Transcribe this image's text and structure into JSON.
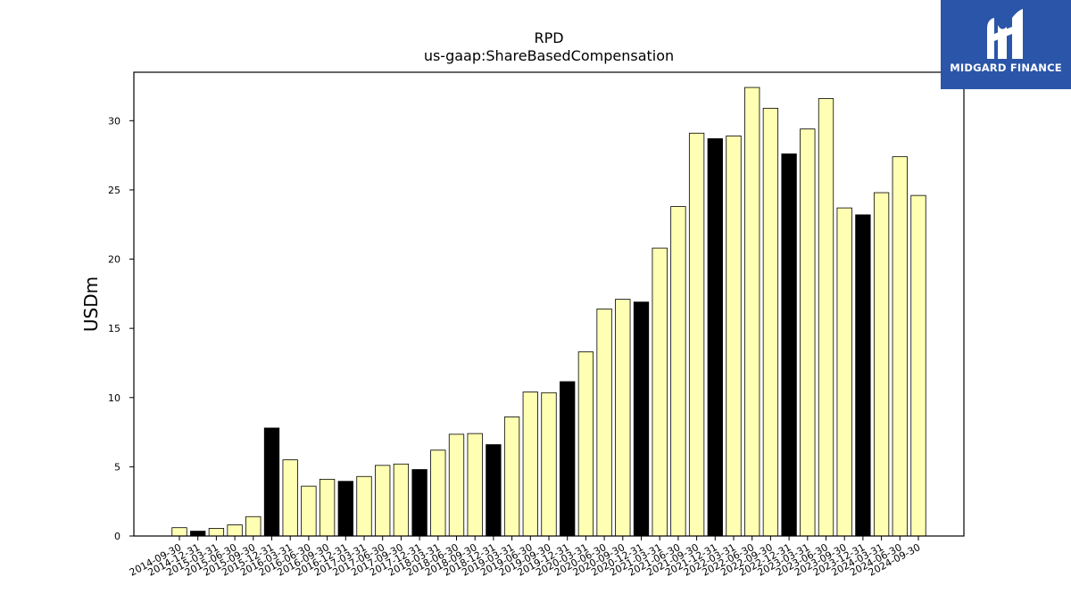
{
  "brand": {
    "name": "MIDGARD FINANCE",
    "logo_icon": "midgard-logo-icon",
    "background_color": "#2b55a8"
  },
  "chart_data": {
    "type": "bar",
    "title": "RPD",
    "subtitle": "us-gaap:ShareBasedCompensation",
    "xlabel": "",
    "ylabel": "USDm",
    "ylim": [
      0,
      33.5
    ],
    "yticks": [
      0,
      5,
      10,
      15,
      20,
      25,
      30
    ],
    "grid": false,
    "legend": "none",
    "colors": {
      "quarter": "#ffffb3",
      "annual": "#000000",
      "edge": "#000000"
    },
    "categories": [
      "2014-09-30",
      "2014-12-31",
      "2015-03-31",
      "2015-06-30",
      "2015-09-30",
      "2015-12-31",
      "2016-03-31",
      "2016-06-30",
      "2016-09-30",
      "2016-12-31",
      "2017-03-31",
      "2017-06-30",
      "2017-09-30",
      "2017-12-31",
      "2018-03-31",
      "2018-06-30",
      "2018-09-30",
      "2018-12-31",
      "2019-03-31",
      "2019-06-30",
      "2019-09-30",
      "2019-12-31",
      "2020-03-31",
      "2020-06-30",
      "2020-09-30",
      "2020-12-31",
      "2021-03-31",
      "2021-06-30",
      "2021-09-30",
      "2021-12-31",
      "2022-03-31",
      "2022-06-30",
      "2022-09-30",
      "2022-12-31",
      "2023-03-31",
      "2023-06-30",
      "2023-09-30",
      "2023-12-31",
      "2024-03-31",
      "2024-06-30",
      "2024-09-30"
    ],
    "values": [
      0.6,
      0.35,
      0.55,
      0.8,
      1.4,
      7.8,
      5.5,
      3.6,
      4.1,
      3.95,
      4.3,
      5.1,
      5.2,
      4.8,
      6.2,
      7.35,
      7.4,
      6.6,
      8.6,
      10.4,
      10.35,
      11.15,
      13.3,
      16.4,
      17.1,
      16.9,
      20.8,
      23.8,
      29.1,
      28.7,
      28.9,
      32.4,
      30.9,
      27.6,
      29.4,
      31.6,
      23.7,
      23.2,
      24.8,
      27.4,
      24.6
    ],
    "annual_flags": [
      false,
      true,
      false,
      false,
      false,
      true,
      false,
      false,
      false,
      true,
      false,
      false,
      false,
      true,
      false,
      false,
      false,
      true,
      false,
      false,
      false,
      true,
      false,
      false,
      false,
      true,
      false,
      false,
      false,
      true,
      false,
      false,
      false,
      true,
      false,
      false,
      false,
      true,
      false,
      false,
      false
    ]
  }
}
